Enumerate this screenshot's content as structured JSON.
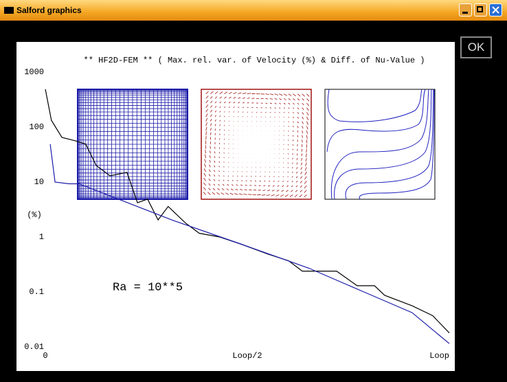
{
  "window": {
    "title": "Salford graphics",
    "ok_button": "OK"
  },
  "chart_data": {
    "type": "line",
    "title": "** HF2D-FEM ** ( Max. rel. var. of Velocity (%) & Diff. of Nu-Value )",
    "y_label": "(%)",
    "annotation": "Ra =  10**5",
    "log_y": true,
    "ylim": [
      0.01,
      1000
    ],
    "yticks": [
      0.01,
      0.1,
      1,
      10,
      100,
      1000
    ],
    "xlim": [
      0,
      1
    ],
    "xticks": [
      0,
      {
        "value": 0.5,
        "label": "Loop/2"
      },
      {
        "value": 1,
        "label": "Loop"
      }
    ],
    "series": [
      {
        "name": "Velocity",
        "color": "#000000",
        "x": [
          0,
          0.015,
          0.041,
          0.075,
          0.1,
          0.126,
          0.16,
          0.202,
          0.228,
          0.253,
          0.279,
          0.304,
          0.347,
          0.381,
          0.432,
          0.483,
          0.551,
          0.602,
          0.636,
          0.687,
          0.721,
          0.772,
          0.815,
          0.84,
          0.908,
          0.959,
          1
        ],
        "values": [
          490,
          133,
          65,
          56,
          49,
          20,
          13,
          15,
          4.2,
          4.9,
          2.05,
          3.6,
          1.8,
          1.17,
          1.0,
          0.75,
          0.49,
          0.37,
          0.24,
          0.24,
          0.24,
          0.13,
          0.13,
          0.087,
          0.056,
          0.037,
          0.018
        ]
      },
      {
        "name": "Nu-Value",
        "color": "#1a1aa8",
        "x": [
          0.012,
          0.024,
          0.058,
          0.083,
          0.16,
          0.313,
          0.483,
          0.653,
          0.789,
          0.908,
          1
        ],
        "values": [
          49,
          10,
          9.3,
          9.3,
          5.6,
          2.05,
          0.75,
          0.27,
          0.1,
          0.042,
          0.0115
        ]
      }
    ]
  }
}
